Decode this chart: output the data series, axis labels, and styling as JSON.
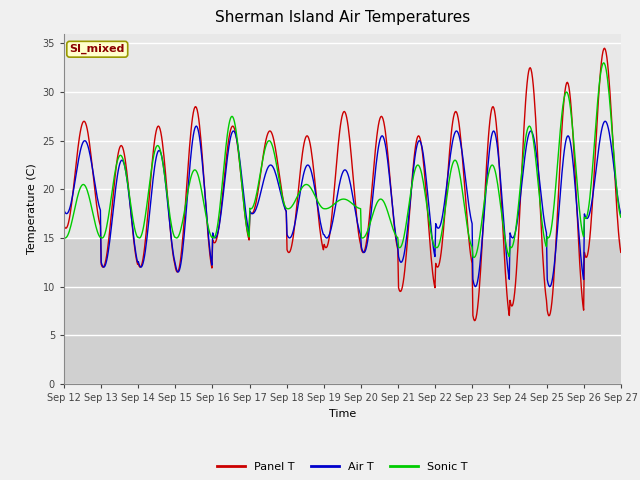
{
  "title": "Sherman Island Air Temperatures",
  "xlabel": "Time",
  "ylabel": "Temperature (C)",
  "ylim": [
    0,
    36
  ],
  "yticks": [
    0,
    5,
    10,
    15,
    20,
    25,
    30,
    35
  ],
  "background_color": "#f0f0f0",
  "plot_bg_upper": "#e8e8e8",
  "plot_bg_lower": "#d0d0d0",
  "annotation_text": "SI_mixed",
  "annotation_bg": "#ffffcc",
  "annotation_fg": "#8b0000",
  "line_colors": {
    "panel": "#cc0000",
    "air": "#0000cc",
    "sonic": "#00cc00"
  },
  "legend_labels": [
    "Panel T",
    "Air T",
    "Sonic T"
  ],
  "xtick_labels": [
    "Sep 12",
    "Sep 13",
    "Sep 14",
    "Sep 15",
    "Sep 16",
    "Sep 17",
    "Sep 18",
    "Sep 19",
    "Sep 20",
    "Sep 21",
    "Sep 22",
    "Sep 23",
    "Sep 24",
    "Sep 25",
    "Sep 26",
    "Sep 27"
  ],
  "num_days": 15,
  "points_per_day": 48,
  "panel_maxes": [
    27,
    24.5,
    26.5,
    28.5,
    26.5,
    26,
    25.5,
    28,
    27.5,
    25.5,
    28,
    28.5,
    32.5,
    31,
    34.5
  ],
  "panel_mins": [
    16,
    12,
    12,
    11.5,
    14.5,
    17.5,
    13.5,
    14,
    13.5,
    9.5,
    12,
    6.5,
    8,
    7,
    13
  ],
  "air_maxes": [
    25,
    23,
    24,
    26.5,
    26,
    22.5,
    22.5,
    22,
    25.5,
    25,
    26,
    26,
    26,
    25.5,
    27
  ],
  "air_mins": [
    17.5,
    12,
    12,
    11.5,
    15,
    17.5,
    15,
    15,
    13.5,
    12.5,
    16,
    10,
    15,
    10,
    17
  ],
  "sonic_maxes": [
    20.5,
    23.5,
    24.5,
    22,
    27.5,
    25,
    20.5,
    19,
    19,
    22.5,
    23,
    22.5,
    26.5,
    30,
    33
  ],
  "sonic_mins": [
    15,
    15,
    15,
    15,
    15,
    18,
    18,
    18,
    15,
    14,
    14,
    13,
    14,
    15,
    17
  ]
}
